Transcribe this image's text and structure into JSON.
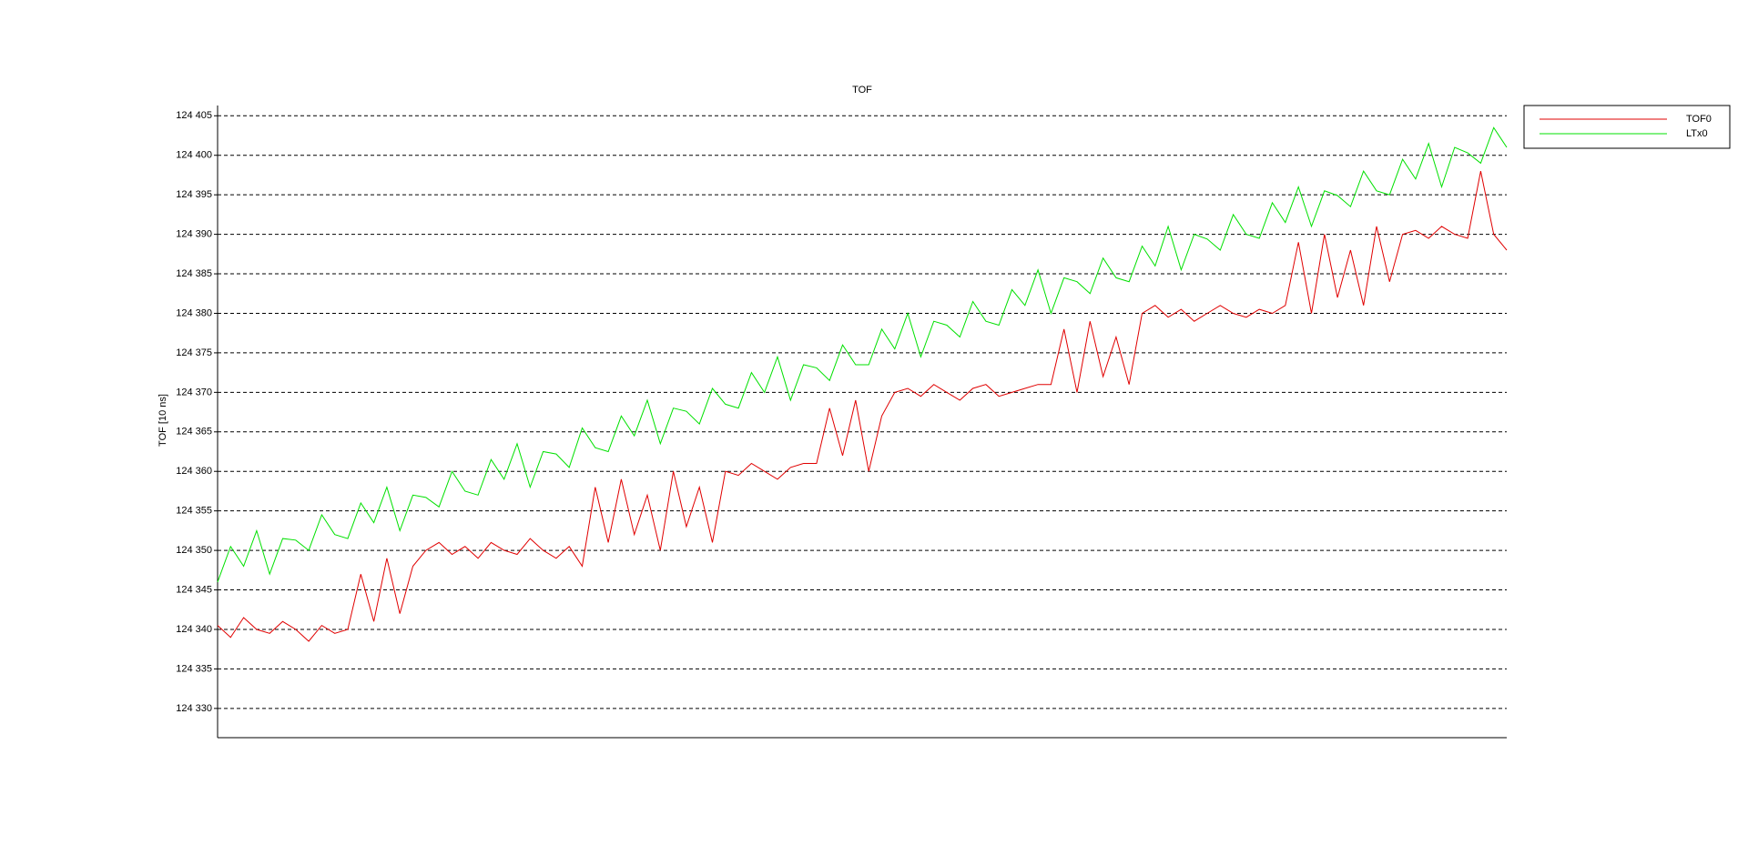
{
  "chart_data": {
    "type": "line",
    "title": "TOF",
    "y_label": "TOF [10 ns]",
    "ylim": [
      124326.3,
      124406.3
    ],
    "yticks": [
      {
        "value": 124330,
        "label": "124 330"
      },
      {
        "value": 124335,
        "label": "124 335"
      },
      {
        "value": 124340,
        "label": "124 340"
      },
      {
        "value": 124345,
        "label": "124 345"
      },
      {
        "value": 124350,
        "label": "124 350"
      },
      {
        "value": 124355,
        "label": "124 355"
      },
      {
        "value": 124360,
        "label": "124 360"
      },
      {
        "value": 124365,
        "label": "124 365"
      },
      {
        "value": 124370,
        "label": "124 370"
      },
      {
        "value": 124375,
        "label": "124 375"
      },
      {
        "value": 124380,
        "label": "124 380"
      },
      {
        "value": 124385,
        "label": "124 385"
      },
      {
        "value": 124390,
        "label": "124 390"
      },
      {
        "value": 124395,
        "label": "124 395"
      },
      {
        "value": 124400,
        "label": "124 400"
      },
      {
        "value": 124405,
        "label": "124 405"
      }
    ],
    "grid": true,
    "legend": "outside-top-right",
    "series": [
      {
        "name": "TOF0",
        "color": "#e00000",
        "values": [
          124340.5,
          124339,
          124341.5,
          124340,
          124339.5,
          124341,
          124340,
          124338.5,
          124340.5,
          124339.5,
          124340,
          124347,
          124341,
          124349,
          124342,
          124348,
          124350,
          124351,
          124349.5,
          124350.5,
          124349,
          124351,
          124350,
          124349.5,
          124351.5,
          124350,
          124349,
          124350.5,
          124348,
          124358,
          124351,
          124359,
          124352,
          124357,
          124350,
          124360,
          124353,
          124358,
          124351,
          124360,
          124359.5,
          124361,
          124360,
          124359,
          124360.5,
          124361,
          124361,
          124368,
          124362,
          124369,
          124360,
          124367,
          124370,
          124370.5,
          124369.5,
          124371,
          124370,
          124369,
          124370.5,
          124371,
          124369.5,
          124370,
          124370.5,
          124371,
          124371,
          124378,
          124370,
          124379,
          124372,
          124377,
          124371,
          124380,
          124381,
          124379.5,
          124380.5,
          124379,
          124380,
          124381,
          124380,
          124379.5,
          124380.5,
          124380,
          124381,
          124389,
          124380,
          124390,
          124382,
          124388,
          124381,
          124391,
          124384,
          124390,
          124390.5,
          124389.5,
          124391,
          124390,
          124389.5,
          124398,
          124390,
          124388
        ]
      },
      {
        "name": "LTx0",
        "color": "#00e000",
        "values": [
          124346,
          124350.5,
          124348,
          124352.5,
          124347,
          124351.5,
          124351.3,
          124350,
          124354.5,
          124352,
          124351.5,
          124356,
          124353.5,
          124358,
          124352.5,
          124357,
          124356.7,
          124355.5,
          124360,
          124357.5,
          124357,
          124361.5,
          124359,
          124363.5,
          124358,
          124362.5,
          124362.2,
          124360.5,
          124365.5,
          124363,
          124362.5,
          124367,
          124364.5,
          124369,
          124363.5,
          124368,
          124367.6,
          124366,
          124370.5,
          124368.5,
          124368,
          124372.5,
          124370,
          124374.5,
          124369,
          124373.5,
          124373.1,
          124371.5,
          124376,
          124373.5,
          124373.5,
          124378,
          124375.5,
          124380,
          124374.5,
          124379,
          124378.5,
          124377,
          124381.5,
          124379,
          124378.5,
          124383,
          124381,
          124385.5,
          124380,
          124384.5,
          124384,
          124382.5,
          124387,
          124384.5,
          124384,
          124388.5,
          124386,
          124391,
          124385.5,
          124390,
          124389.4,
          124388,
          124392.5,
          124390,
          124389.5,
          124394,
          124391.5,
          124396,
          124391,
          124395.5,
          124394.9,
          124393.5,
          124398,
          124395.5,
          124395,
          124399.5,
          124397,
          124401.5,
          124396,
          124401,
          124400.3,
          124399,
          124403.5,
          124401
        ]
      }
    ]
  }
}
